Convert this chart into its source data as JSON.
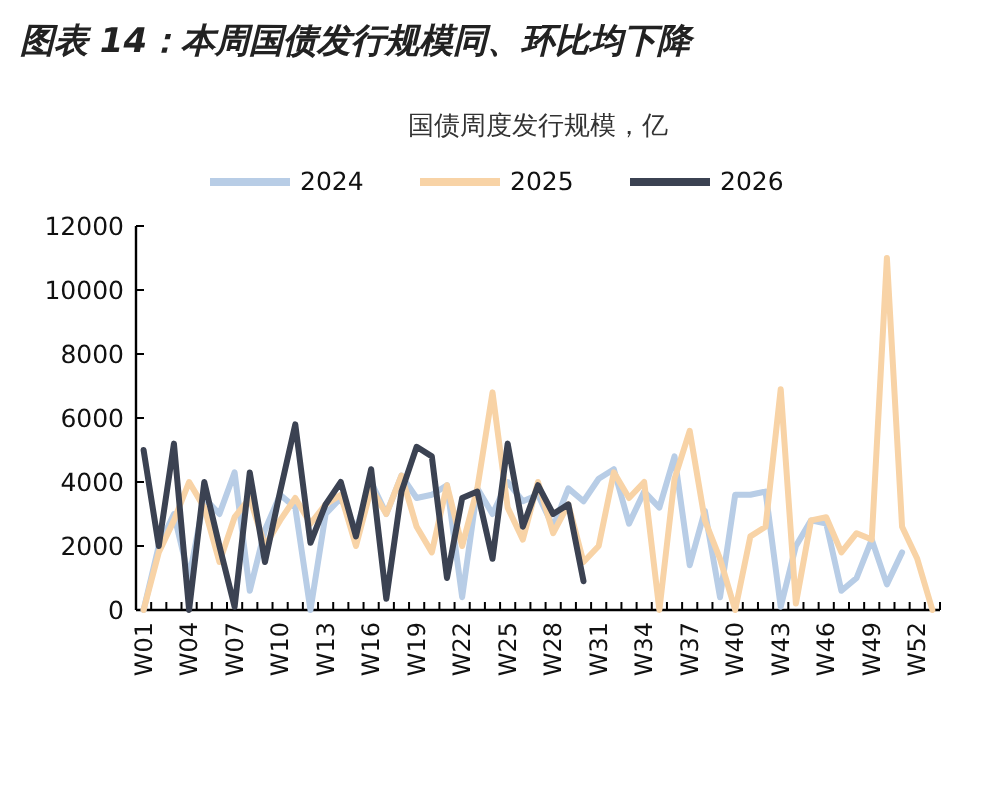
{
  "chart_data": {
    "type": "line",
    "title": "图表 14：本周国债发行规模同、环比均下降",
    "subtitle": "国债周度发行规模，亿",
    "categories": [
      "W01",
      null,
      null,
      "W04",
      null,
      null,
      "W07",
      null,
      null,
      "W10",
      null,
      null,
      "W13",
      null,
      null,
      "W16",
      null,
      null,
      "W19",
      null,
      null,
      "W22",
      null,
      null,
      "W25",
      null,
      null,
      "W28",
      null,
      null,
      "W31",
      null,
      null,
      "W34",
      null,
      null,
      "W37",
      null,
      null,
      "W40",
      null,
      null,
      "W43",
      null,
      null,
      "W46",
      null,
      null,
      "W49",
      null,
      null,
      "W52",
      null
    ],
    "series": [
      {
        "name": "2024",
        "color": "#b8cde6",
        "values": [
          0,
          2000,
          3000,
          1000,
          3500,
          3000,
          4300,
          600,
          2500,
          3600,
          3200,
          0,
          3000,
          3500,
          2500,
          4000,
          3000,
          4200,
          3500,
          3600,
          3900,
          400,
          3800,
          3000,
          4000,
          3400,
          3600,
          2600,
          3800,
          3400,
          4100,
          4400,
          2700,
          3700,
          3200,
          4800,
          1400,
          3100,
          400,
          3600,
          3600,
          3700,
          100,
          2000,
          2800,
          2700,
          600,
          1000,
          2200,
          800,
          1800,
          null,
          null
        ]
      },
      {
        "name": "2025",
        "color": "#f8d3a6",
        "values": [
          0,
          1800,
          2800,
          4000,
          3200,
          1500,
          2900,
          3500,
          2000,
          2800,
          3500,
          2700,
          3300,
          3600,
          2000,
          3800,
          3000,
          4200,
          2600,
          1800,
          3900,
          2000,
          3800,
          6800,
          3200,
          2200,
          4000,
          2400,
          3300,
          1500,
          2000,
          4300,
          3500,
          4000,
          0,
          4100,
          5600,
          2800,
          1600,
          0,
          2300,
          2600,
          6900,
          200,
          2800,
          2900,
          1800,
          2400,
          2200,
          11000,
          2600,
          1600,
          0
        ]
      },
      {
        "name": "2026",
        "color": "#3b4252",
        "values": [
          5000,
          2000,
          5200,
          0,
          4000,
          2000,
          100,
          4300,
          1500,
          3700,
          5800,
          2100,
          3300,
          4000,
          2300,
          4400,
          350,
          3700,
          5100,
          4800,
          1000,
          3500,
          3700,
          1600,
          5200,
          2600,
          3900,
          3000,
          3300,
          900,
          null,
          null,
          null,
          null,
          null,
          null,
          null,
          null,
          null,
          null,
          null,
          null,
          null,
          null,
          null,
          null,
          null,
          null,
          null,
          null,
          null,
          null,
          null
        ]
      }
    ],
    "ylim": [
      0,
      12000
    ],
    "yticks": [
      0,
      2000,
      4000,
      6000,
      8000,
      10000,
      12000
    ],
    "grid": false,
    "legend": "top",
    "marker": "none",
    "line_style": "solid"
  }
}
